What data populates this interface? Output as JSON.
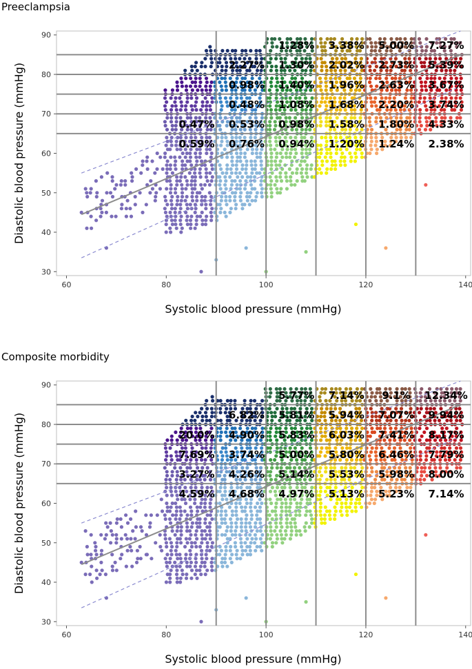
{
  "colors": {
    "bins": [
      "#7a6cb8",
      "#8ab6da",
      "#92d17f",
      "#f2f200",
      "#f6a86c",
      "#ef5f57"
    ],
    "band_dark": [
      [
        "#7a6cb8",
        "#8ab6da",
        "#92d17f",
        "#f2f200",
        "#f6a86c",
        "#ef5f57"
      ],
      [
        "#6d5cae",
        "#6f9fcf",
        "#5fae59",
        "#f2df1a",
        "#ee8a45",
        "#e74b41"
      ],
      [
        "#5e3aa0",
        "#3a86c8",
        "#3e9a43",
        "#f0b80d",
        "#e8642b",
        "#d32c2a"
      ],
      [
        "#4a148c",
        "#1f6fb5",
        "#218838",
        "#e0a800",
        "#d9481f",
        "#c1121f"
      ],
      [
        "#1a2f6b",
        "#1a2f6b",
        "#1f6b3a",
        "#c48a00",
        "#b3341c",
        "#a8101a"
      ],
      [
        "#1a2f6b",
        "#1a2f6b",
        "#2e6b45",
        "#a88a20",
        "#8a5a45",
        "#8a5a6a"
      ]
    ],
    "gridline": "#8c8c8c",
    "trendline": "#8c8c8c",
    "ci_line": "#8a8ad0"
  },
  "panels": [
    {
      "title": "Preeclampsia",
      "chart_data": {
        "type": "scatter",
        "title": "Preeclampsia",
        "xlabel": "Systolic blood pressure (mmHg)",
        "ylabel": "Diastolic blood pressure (mmHg)",
        "xlim": [
          58,
          141
        ],
        "ylim": [
          29,
          91
        ],
        "xticks": [
          60,
          80,
          100,
          120,
          140
        ],
        "yticks": [
          30,
          40,
          50,
          60,
          70,
          80,
          90
        ],
        "sbp_cutoffs": [
          90,
          100,
          110,
          120,
          130
        ],
        "dbp_cutoffs": [
          65,
          70,
          75,
          80,
          85
        ],
        "trend": {
          "x": [
            63,
            139
          ],
          "y": [
            44.5,
            85
          ]
        },
        "ci_upper": {
          "x": [
            63,
            139
          ],
          "y": [
            55,
            91
          ]
        },
        "ci_lower": {
          "x": [
            63,
            139
          ],
          "y": [
            33.5,
            77
          ]
        },
        "cell_labels": [
          {
            "sbp": 85,
            "dbp": 62.5,
            "label": "0.59%"
          },
          {
            "sbp": 95,
            "dbp": 62.5,
            "label": "0.76%"
          },
          {
            "sbp": 105,
            "dbp": 62.5,
            "label": "0.94%"
          },
          {
            "sbp": 115,
            "dbp": 62.5,
            "label": "1.20%"
          },
          {
            "sbp": 125,
            "dbp": 62.5,
            "label": "1.24%"
          },
          {
            "sbp": 135,
            "dbp": 62.5,
            "label": "2.38%"
          },
          {
            "sbp": 85,
            "dbp": 67.5,
            "label": "0.47%"
          },
          {
            "sbp": 95,
            "dbp": 67.5,
            "label": "0.53%"
          },
          {
            "sbp": 105,
            "dbp": 67.5,
            "label": "0.98%"
          },
          {
            "sbp": 115,
            "dbp": 67.5,
            "label": "1.58%"
          },
          {
            "sbp": 125,
            "dbp": 67.5,
            "label": "1.80%"
          },
          {
            "sbp": 135,
            "dbp": 67.5,
            "label": "4.33%"
          },
          {
            "sbp": 95,
            "dbp": 72.5,
            "label": "0.48%"
          },
          {
            "sbp": 105,
            "dbp": 72.5,
            "label": "1.08%"
          },
          {
            "sbp": 115,
            "dbp": 72.5,
            "label": "1.68%"
          },
          {
            "sbp": 125,
            "dbp": 72.5,
            "label": "2.20%"
          },
          {
            "sbp": 135,
            "dbp": 72.5,
            "label": "3.74%"
          },
          {
            "sbp": 95,
            "dbp": 77.5,
            "label": "0.98%"
          },
          {
            "sbp": 105,
            "dbp": 77.5,
            "label": "1.40%"
          },
          {
            "sbp": 115,
            "dbp": 77.5,
            "label": "1.96%"
          },
          {
            "sbp": 125,
            "dbp": 77.5,
            "label": "2.63%"
          },
          {
            "sbp": 135,
            "dbp": 77.5,
            "label": "3.67%"
          },
          {
            "sbp": 95,
            "dbp": 82.5,
            "label": "2.27%"
          },
          {
            "sbp": 105,
            "dbp": 82.5,
            "label": "1.30%"
          },
          {
            "sbp": 115,
            "dbp": 82.5,
            "label": "2.02%"
          },
          {
            "sbp": 125,
            "dbp": 82.5,
            "label": "2.73%"
          },
          {
            "sbp": 135,
            "dbp": 82.5,
            "label": "5.39%"
          },
          {
            "sbp": 105,
            "dbp": 87.5,
            "label": "1.28%"
          },
          {
            "sbp": 115,
            "dbp": 87.5,
            "label": "3.38%"
          },
          {
            "sbp": 125,
            "dbp": 87.5,
            "label": "5.00%"
          },
          {
            "sbp": 135,
            "dbp": 87.5,
            "label": "7.27%"
          }
        ]
      }
    },
    {
      "title": "Composite morbidity",
      "chart_data": {
        "type": "scatter",
        "title": "Composite morbidity",
        "xlabel": "Systolic blood pressure (mmHg)",
        "ylabel": "Diastolic blood pressure (mmHg)",
        "xlim": [
          58,
          141
        ],
        "ylim": [
          29,
          91
        ],
        "xticks": [
          60,
          80,
          100,
          120,
          140
        ],
        "yticks": [
          30,
          40,
          50,
          60,
          70,
          80,
          90
        ],
        "sbp_cutoffs": [
          90,
          100,
          110,
          120,
          130
        ],
        "dbp_cutoffs": [
          65,
          70,
          75,
          80,
          85
        ],
        "trend": {
          "x": [
            63,
            139
          ],
          "y": [
            44.5,
            85
          ]
        },
        "ci_upper": {
          "x": [
            63,
            139
          ],
          "y": [
            55,
            91
          ]
        },
        "ci_lower": {
          "x": [
            63,
            139
          ],
          "y": [
            33.5,
            77
          ]
        },
        "cell_labels": [
          {
            "sbp": 85,
            "dbp": 62.5,
            "label": "4.59%"
          },
          {
            "sbp": 95,
            "dbp": 62.5,
            "label": "4.68%"
          },
          {
            "sbp": 105,
            "dbp": 62.5,
            "label": "4.97%"
          },
          {
            "sbp": 115,
            "dbp": 62.5,
            "label": "5.13%"
          },
          {
            "sbp": 125,
            "dbp": 62.5,
            "label": "5.23%"
          },
          {
            "sbp": 135,
            "dbp": 62.5,
            "label": "7.14%"
          },
          {
            "sbp": 85,
            "dbp": 67.5,
            "label": "3.27%"
          },
          {
            "sbp": 95,
            "dbp": 67.5,
            "label": "4.26%"
          },
          {
            "sbp": 105,
            "dbp": 67.5,
            "label": "5.14%"
          },
          {
            "sbp": 115,
            "dbp": 67.5,
            "label": "5.53%"
          },
          {
            "sbp": 125,
            "dbp": 67.5,
            "label": "5.98%"
          },
          {
            "sbp": 135,
            "dbp": 67.5,
            "label": "8.00%"
          },
          {
            "sbp": 85,
            "dbp": 72.5,
            "label": "7.69%"
          },
          {
            "sbp": 95,
            "dbp": 72.5,
            "label": "3.74%"
          },
          {
            "sbp": 105,
            "dbp": 72.5,
            "label": "5.00%"
          },
          {
            "sbp": 115,
            "dbp": 72.5,
            "label": "5.80%"
          },
          {
            "sbp": 125,
            "dbp": 72.5,
            "label": "6.46%"
          },
          {
            "sbp": 135,
            "dbp": 72.5,
            "label": "7.79%"
          },
          {
            "sbp": 85,
            "dbp": 77.5,
            "label": "20.0%"
          },
          {
            "sbp": 95,
            "dbp": 77.5,
            "label": "4.90%"
          },
          {
            "sbp": 105,
            "dbp": 77.5,
            "label": "5.83%"
          },
          {
            "sbp": 115,
            "dbp": 77.5,
            "label": "6.03%"
          },
          {
            "sbp": 125,
            "dbp": 77.5,
            "label": "7.41%"
          },
          {
            "sbp": 135,
            "dbp": 77.5,
            "label": "8.17%"
          },
          {
            "sbp": 95,
            "dbp": 82.5,
            "label": "6.82%"
          },
          {
            "sbp": 105,
            "dbp": 82.5,
            "label": "5.81%"
          },
          {
            "sbp": 115,
            "dbp": 82.5,
            "label": "5.94%"
          },
          {
            "sbp": 125,
            "dbp": 82.5,
            "label": "7.07%"
          },
          {
            "sbp": 135,
            "dbp": 82.5,
            "label": "9.94%"
          },
          {
            "sbp": 105,
            "dbp": 87.5,
            "label": "5.77%"
          },
          {
            "sbp": 115,
            "dbp": 87.5,
            "label": "7.14%"
          },
          {
            "sbp": 125,
            "dbp": 87.5,
            "label": "9.1%"
          },
          {
            "sbp": 135,
            "dbp": 87.5,
            "label": "12.34%"
          }
        ]
      }
    }
  ]
}
